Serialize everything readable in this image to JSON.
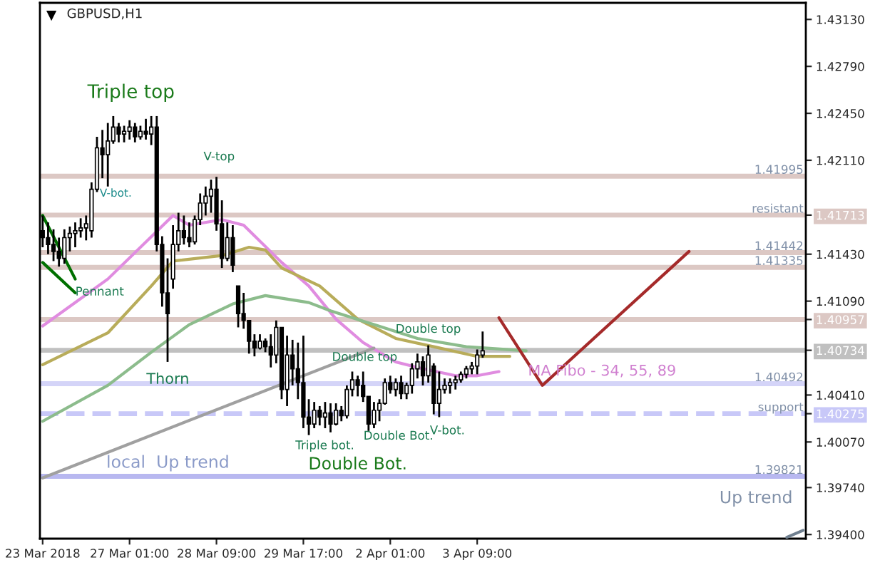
{
  "chart_data": {
    "type": "candlestick",
    "title": "GBPUSD,H1",
    "color": "#000000",
    "categories": [
      "23 Mar 2018",
      null,
      null,
      null,
      null,
      null,
      null,
      null,
      null,
      null,
      null,
      null,
      null,
      null,
      null,
      null,
      "27 Mar 01:00",
      null,
      null,
      null,
      null,
      null,
      null,
      null,
      null,
      null,
      null,
      null,
      null,
      null,
      null,
      null,
      "28 Mar 09:00",
      null,
      null,
      null,
      null,
      null,
      null,
      null,
      null,
      null,
      null,
      null,
      null,
      null,
      null,
      null,
      "29 Mar 17:00",
      null,
      null,
      null,
      null,
      null,
      null,
      null,
      null,
      null,
      null,
      null,
      null,
      null,
      null,
      null,
      "2 Apr 01:00",
      null,
      null,
      null,
      null,
      null,
      null,
      null,
      null,
      null,
      null,
      null,
      null,
      null,
      null,
      null,
      "3 Apr 09:00",
      null,
      null,
      null,
      null,
      null,
      null,
      null,
      null,
      null,
      null,
      null,
      null,
      null,
      null,
      null,
      null,
      null,
      null,
      null,
      null,
      null,
      null,
      null,
      null,
      null,
      null,
      null,
      null,
      null,
      null,
      null,
      null,
      null,
      null,
      null,
      null,
      null,
      null,
      null,
      null,
      null,
      null,
      null,
      null,
      null,
      null,
      null,
      null,
      null,
      null,
      null,
      null,
      null,
      null,
      null,
      null,
      null,
      null,
      null,
      null
    ],
    "ohlc": [
      [
        1.416,
        1.4171,
        1.4148,
        1.4155
      ],
      [
        1.4155,
        1.4166,
        1.4143,
        1.415
      ],
      [
        1.415,
        1.4161,
        1.4138,
        1.4145
      ],
      [
        1.4145,
        1.4155,
        1.4134,
        1.414
      ],
      [
        1.414,
        1.4161,
        1.4136,
        1.4155
      ],
      [
        1.4155,
        1.4163,
        1.4145,
        1.4158
      ],
      [
        1.4158,
        1.4166,
        1.4148,
        1.416
      ],
      [
        1.416,
        1.4169,
        1.4155,
        1.4162
      ],
      [
        1.4162,
        1.4171,
        1.4153,
        1.4165
      ],
      [
        1.416,
        1.4195,
        1.4155,
        1.419
      ],
      [
        1.419,
        1.4228,
        1.4188,
        1.422
      ],
      [
        1.422,
        1.4233,
        1.4198,
        1.4215
      ],
      [
        1.4215,
        1.4238,
        1.4192,
        1.4225
      ],
      [
        1.4225,
        1.4243,
        1.4223,
        1.4235
      ],
      [
        1.4235,
        1.4238,
        1.4224,
        1.423
      ],
      [
        1.423,
        1.4236,
        1.4224,
        1.4232
      ],
      [
        1.4232,
        1.424,
        1.4226,
        1.4235
      ],
      [
        1.4235,
        1.4238,
        1.4224,
        1.4228
      ],
      [
        1.4228,
        1.4236,
        1.4226,
        1.4232
      ],
      [
        1.4232,
        1.4241,
        1.4226,
        1.423
      ],
      [
        1.423,
        1.4243,
        1.4222,
        1.4235
      ],
      [
        1.4235,
        1.4243,
        1.4145,
        1.415
      ],
      [
        1.415,
        1.4156,
        1.4105,
        1.4115
      ],
      [
        1.4115,
        1.414,
        1.4065,
        1.41
      ],
      [
        1.4125,
        1.4164,
        1.4118,
        1.415
      ],
      [
        1.415,
        1.4173,
        1.4145,
        1.416
      ],
      [
        1.416,
        1.4171,
        1.415,
        1.4155
      ],
      [
        1.4155,
        1.4166,
        1.4148,
        1.4152
      ],
      [
        1.4152,
        1.4171,
        1.415,
        1.4168
      ],
      [
        1.4168,
        1.4187,
        1.4164,
        1.418
      ],
      [
        1.418,
        1.4192,
        1.4171,
        1.4185
      ],
      [
        1.4185,
        1.4197,
        1.4173,
        1.419
      ],
      [
        1.419,
        1.4199,
        1.416,
        1.4165
      ],
      [
        1.4165,
        1.4182,
        1.4133,
        1.414
      ],
      [
        1.414,
        1.4166,
        1.4138,
        1.4155
      ],
      [
        1.4155,
        1.4164,
        1.413,
        1.4135
      ],
      [
        1.412,
        1.412,
        1.409,
        1.41
      ],
      [
        1.41,
        1.4115,
        1.4089,
        1.4095
      ],
      [
        1.4095,
        1.4095,
        1.4071,
        1.408
      ],
      [
        1.408,
        1.4085,
        1.4069,
        1.4075
      ],
      [
        1.4075,
        1.4085,
        1.4074,
        1.408
      ],
      [
        1.408,
        1.4082,
        1.4072,
        1.4076
      ],
      [
        1.4076,
        1.4085,
        1.4061,
        1.407
      ],
      [
        1.407,
        1.4095,
        1.4064,
        1.409
      ],
      [
        1.409,
        1.409,
        1.4038,
        1.4045
      ],
      [
        1.4045,
        1.4084,
        1.4033,
        1.407
      ],
      [
        1.407,
        1.4081,
        1.4048,
        1.406
      ],
      [
        1.406,
        1.4079,
        1.4038,
        1.405
      ],
      [
        1.405,
        1.4084,
        1.4017,
        1.4025
      ],
      [
        1.4025,
        1.4038,
        1.4012,
        1.402
      ],
      [
        1.402,
        1.4036,
        1.4017,
        1.403
      ],
      [
        1.403,
        1.4033,
        1.4019,
        1.4025
      ],
      [
        1.4025,
        1.4036,
        1.4017,
        1.4028
      ],
      [
        1.4028,
        1.4035,
        1.4014,
        1.402
      ],
      [
        1.402,
        1.4035,
        1.4019,
        1.403
      ],
      [
        1.403,
        1.4033,
        1.4022,
        1.4026
      ],
      [
        1.4026,
        1.4048,
        1.4024,
        1.4045
      ],
      [
        1.4045,
        1.4058,
        1.404,
        1.4052
      ],
      [
        1.4052,
        1.4055,
        1.404,
        1.4048
      ],
      [
        1.4048,
        1.4058,
        1.4036,
        1.404
      ],
      [
        1.404,
        1.404,
        1.4015,
        1.402
      ],
      [
        1.402,
        1.4036,
        1.4017,
        1.403
      ],
      [
        1.403,
        1.4038,
        1.4022,
        1.4035
      ],
      [
        1.4035,
        1.4053,
        1.4034,
        1.405
      ],
      [
        1.405,
        1.4055,
        1.4042,
        1.4045
      ],
      [
        1.4045,
        1.4053,
        1.404,
        1.405
      ],
      [
        1.405,
        1.4055,
        1.4038,
        1.4042
      ],
      [
        1.4042,
        1.405,
        1.4038,
        1.4048
      ],
      [
        1.4048,
        1.4064,
        1.4042,
        1.406
      ],
      [
        1.406,
        1.4071,
        1.4053,
        1.4065
      ],
      [
        1.4065,
        1.4069,
        1.4048,
        1.4055
      ],
      [
        1.4055,
        1.4077,
        1.405,
        1.407
      ],
      [
        1.4062,
        1.4064,
        1.4027,
        1.4035
      ],
      [
        1.4035,
        1.4058,
        1.4025,
        1.4045
      ],
      [
        1.4045,
        1.4053,
        1.4042,
        1.4048
      ],
      [
        1.4048,
        1.4053,
        1.4042,
        1.405
      ],
      [
        1.405,
        1.4055,
        1.4045,
        1.4052
      ],
      [
        1.4052,
        1.4058,
        1.405,
        1.4056
      ],
      [
        1.4056,
        1.4062,
        1.4053,
        1.406
      ],
      [
        1.406,
        1.4065,
        1.4056,
        1.4062
      ],
      [
        1.4062,
        1.4074,
        1.4056,
        1.407
      ],
      [
        1.407,
        1.4087,
        1.4068,
        1.4073
      ],
      null,
      null,
      null,
      null,
      null,
      null,
      null,
      null,
      null,
      null,
      null,
      null,
      null,
      null,
      null,
      null,
      null,
      null,
      null,
      null,
      null,
      null,
      null,
      null,
      null,
      null,
      null,
      null,
      null,
      null,
      null,
      null,
      null,
      null,
      null,
      null,
      null,
      null,
      null,
      null,
      null,
      null,
      null,
      null,
      null,
      null,
      null,
      null,
      null,
      null,
      null,
      null,
      null,
      null,
      null,
      null,
      null,
      null,
      null
    ],
    "series": [
      {
        "type": "line",
        "color": "#e08ce0",
        "values": [
          1.4091,
          null,
          null,
          null,
          null,
          null,
          null,
          null,
          null,
          null,
          null,
          null,
          1.4125,
          null,
          null,
          null,
          null,
          null,
          null,
          null,
          null,
          null,
          null,
          null,
          1.4171,
          null,
          null,
          1.4164,
          null,
          null,
          null,
          null,
          null,
          1.4168,
          null,
          null,
          null,
          1.4164,
          null,
          null,
          null,
          null,
          null,
          null,
          1.4137,
          null,
          null,
          null,
          null,
          1.412,
          null,
          null,
          null,
          null,
          1.4096,
          null,
          null,
          null,
          null,
          1.4079,
          null,
          null,
          null,
          null,
          null,
          1.4065,
          null,
          null,
          null,
          1.4061,
          null,
          null,
          null,
          null,
          null,
          null,
          1.4055,
          null,
          null,
          null,
          1.4055,
          null,
          null,
          null,
          1.4058,
          null,
          null,
          null,
          null,
          null,
          null,
          null,
          null,
          null,
          null,
          null,
          null,
          null,
          null,
          null,
          null,
          null,
          null,
          null,
          null,
          null,
          null,
          null,
          null,
          null,
          null,
          null,
          null,
          null,
          null,
          null,
          null,
          null,
          null,
          null,
          null,
          null,
          null,
          null,
          null,
          null,
          null,
          null,
          null,
          null,
          null,
          null,
          null,
          null,
          null,
          null,
          null,
          null,
          null,
          null,
          null
        ]
      },
      {
        "type": "line",
        "color": "#b8ac5a",
        "values": [
          1.4063,
          null,
          null,
          null,
          null,
          null,
          null,
          null,
          null,
          null,
          null,
          null,
          1.4086,
          null,
          null,
          null,
          null,
          null,
          null,
          null,
          1.412,
          null,
          null,
          null,
          1.4138,
          null,
          null,
          null,
          null,
          null,
          null,
          null,
          null,
          1.4142,
          null,
          null,
          null,
          null,
          1.4148,
          null,
          null,
          1.4146,
          null,
          null,
          1.4133,
          null,
          null,
          null,
          null,
          null,
          null,
          1.412,
          null,
          null,
          null,
          null,
          null,
          null,
          1.4096,
          null,
          null,
          null,
          null,
          null,
          null,
          1.4082,
          null,
          null,
          null,
          null,
          null,
          null,
          1.4076,
          null,
          null,
          null,
          null,
          null,
          null,
          null,
          1.4069,
          null,
          null,
          null,
          null,
          null,
          1.4069,
          null,
          null,
          null,
          null,
          null,
          null,
          null,
          null,
          null,
          null,
          null,
          null,
          null,
          null,
          null,
          null,
          null,
          null,
          null,
          null,
          null,
          null,
          null,
          null,
          null,
          null,
          null,
          null,
          null,
          null,
          null,
          null,
          null,
          null,
          null,
          null,
          null,
          null,
          null,
          null,
          null,
          null,
          null,
          null,
          null,
          null,
          null,
          null,
          null,
          null,
          null,
          null,
          null,
          null
        ]
      },
      {
        "type": "line",
        "color": "#8cbc8c",
        "values": [
          1.4022,
          null,
          null,
          null,
          null,
          null,
          null,
          null,
          null,
          null,
          null,
          null,
          1.4048,
          null,
          null,
          null,
          null,
          null,
          null,
          null,
          1.4072,
          null,
          null,
          null,
          null,
          null,
          null,
          1.4092,
          null,
          null,
          null,
          null,
          null,
          null,
          null,
          1.4107,
          null,
          null,
          null,
          null,
          null,
          1.4113,
          null,
          null,
          null,
          null,
          null,
          null,
          null,
          1.4108,
          null,
          null,
          null,
          1.4102,
          null,
          null,
          null,
          null,
          null,
          null,
          null,
          1.4092,
          null,
          null,
          null,
          null,
          null,
          null,
          null,
          1.4082,
          null,
          null,
          null,
          null,
          null,
          null,
          null,
          null,
          1.4076,
          null,
          null,
          null,
          null,
          null,
          null,
          null,
          null,
          null,
          null,
          1.4073,
          null,
          null,
          null,
          null,
          null,
          null,
          null,
          null,
          null,
          null,
          null,
          null,
          null,
          null,
          null,
          null,
          null,
          null,
          null,
          null,
          null,
          null,
          null,
          null,
          null,
          null,
          null,
          null,
          null,
          null,
          null,
          null,
          null,
          null,
          null,
          null,
          null,
          null,
          null,
          null,
          null,
          null,
          null,
          null,
          null,
          null,
          null,
          null,
          null,
          null,
          null
        ]
      },
      {
        "type": "line",
        "color": "#a0a0a0",
        "values": [
          1.3981,
          null,
          null,
          null,
          null,
          null,
          null,
          null,
          null,
          null,
          null,
          null,
          null,
          null,
          null,
          null,
          null,
          null,
          null,
          null,
          null,
          null,
          null,
          null,
          null,
          null,
          null,
          null,
          null,
          null,
          null,
          null,
          null,
          null,
          null,
          null,
          null,
          null,
          null,
          null,
          null,
          null,
          null,
          null,
          null,
          null,
          null,
          null,
          null,
          null,
          null,
          null,
          null,
          null,
          null,
          null,
          null,
          null,
          null,
          null,
          null,
          1.4075,
          null,
          null,
          null,
          null,
          null,
          null,
          null,
          null,
          null,
          null,
          null,
          null,
          null,
          null,
          null,
          null,
          null,
          null,
          null,
          null,
          null,
          null,
          null,
          null,
          null,
          null,
          null,
          null,
          null,
          null,
          null,
          null,
          null,
          null,
          null,
          null,
          null,
          null,
          null,
          null,
          null,
          null,
          null,
          null,
          null,
          null,
          null,
          null,
          null,
          null,
          null,
          null,
          null,
          null,
          null,
          null,
          null,
          null,
          null,
          null,
          null,
          null,
          null,
          null,
          null,
          null,
          null,
          null,
          null,
          null,
          null,
          null,
          null,
          null,
          null,
          null,
          null,
          null,
          null
        ]
      },
      {
        "type": "line",
        "color": "#708090",
        "values": [
          null,
          null,
          null,
          null,
          null,
          null,
          null,
          null,
          null,
          null,
          null,
          null,
          null,
          null,
          null,
          null,
          null,
          null,
          null,
          null,
          null,
          null,
          null,
          null,
          null,
          null,
          null,
          null,
          null,
          null,
          null,
          null,
          null,
          null,
          null,
          null,
          null,
          null,
          null,
          null,
          null,
          null,
          null,
          null,
          null,
          null,
          null,
          null,
          null,
          null,
          null,
          null,
          null,
          null,
          null,
          null,
          null,
          null,
          null,
          null,
          null,
          null,
          null,
          null,
          null,
          null,
          null,
          null,
          null,
          null,
          null,
          null,
          null,
          null,
          null,
          null,
          null,
          null,
          null,
          null,
          null,
          null,
          null,
          null,
          null,
          null,
          null,
          null,
          null,
          null,
          null,
          null,
          null,
          null,
          null,
          null,
          null,
          null,
          null,
          null,
          null,
          null,
          null,
          null,
          null,
          null,
          null,
          null,
          null,
          null,
          null,
          null,
          null,
          null,
          null,
          null,
          null,
          null,
          null,
          null,
          null,
          null,
          null,
          null,
          null,
          null,
          null,
          null,
          null,
          null,
          null,
          null,
          null,
          null,
          null,
          null,
          null,
          1.3938,
          null,
          null,
          1.3943
        ]
      },
      {
        "type": "line",
        "color": "#007000",
        "values": [
          1.4171,
          null,
          null,
          null,
          null,
          null,
          1.4125,
          null,
          null,
          null,
          null,
          null,
          null,
          null,
          null,
          null,
          null,
          null,
          null,
          null,
          null,
          null,
          null,
          null,
          null,
          null,
          null,
          null,
          null,
          null,
          null,
          null,
          null,
          null,
          null,
          null,
          null,
          null,
          null,
          null,
          null,
          null,
          null,
          null,
          null,
          null,
          null,
          null,
          null,
          null,
          null,
          null,
          null,
          null,
          null,
          null,
          null,
          null,
          null,
          null,
          null,
          null,
          null,
          null,
          null,
          null,
          null,
          null,
          null,
          null,
          null,
          null,
          null,
          null,
          null,
          null,
          null,
          null,
          null,
          null,
          null,
          null,
          null,
          null,
          null,
          null,
          null,
          null,
          null,
          null,
          null,
          null,
          null,
          null,
          null,
          null,
          null,
          null,
          null,
          null,
          null,
          null,
          null,
          null,
          null,
          null,
          null,
          null,
          null,
          null,
          null,
          null,
          null,
          null,
          null,
          null,
          null,
          null,
          null,
          null,
          null,
          null,
          null,
          null,
          null,
          null,
          null,
          null,
          null,
          null,
          null,
          null,
          null,
          null,
          null,
          null,
          null,
          null,
          null,
          null,
          null
        ]
      },
      {
        "type": "line",
        "color": "#007000",
        "values": [
          1.4137,
          null,
          null,
          null,
          null,
          null,
          1.4115,
          null,
          null,
          null,
          null,
          null,
          null,
          null,
          null,
          null,
          null,
          null,
          null,
          null,
          null,
          null,
          null,
          null,
          null,
          null,
          null,
          null,
          null,
          null,
          null,
          null,
          null,
          null,
          null,
          null,
          null,
          null,
          null,
          null,
          null,
          null,
          null,
          null,
          null,
          null,
          null,
          null,
          null,
          null,
          null,
          null,
          null,
          null,
          null,
          null,
          null,
          null,
          null,
          null,
          null,
          null,
          null,
          null,
          null,
          null,
          null,
          null,
          null,
          null,
          null,
          null,
          null,
          null,
          null,
          null,
          null,
          null,
          null,
          null,
          null,
          null,
          null,
          null,
          null,
          null,
          null,
          null,
          null,
          null,
          null,
          null,
          null,
          null,
          null,
          null,
          null,
          null,
          null,
          null,
          null,
          null,
          null,
          null,
          null,
          null,
          null,
          null,
          null,
          null,
          null,
          null,
          null,
          null,
          null,
          null,
          null,
          null,
          null,
          null,
          null,
          null,
          null,
          null,
          null,
          null,
          null,
          null,
          null,
          null,
          null,
          null,
          null,
          null,
          null,
          null,
          null,
          null,
          null,
          null,
          null
        ]
      },
      {
        "type": "line",
        "color": "#a52a2a",
        "values": [
          null,
          null,
          null,
          null,
          null,
          null,
          null,
          null,
          null,
          null,
          null,
          null,
          null,
          null,
          null,
          null,
          null,
          null,
          null,
          null,
          null,
          null,
          null,
          null,
          null,
          null,
          null,
          null,
          null,
          null,
          null,
          null,
          null,
          null,
          null,
          null,
          null,
          null,
          null,
          null,
          null,
          null,
          null,
          null,
          null,
          null,
          null,
          null,
          null,
          null,
          null,
          null,
          null,
          null,
          null,
          null,
          null,
          null,
          null,
          null,
          null,
          null,
          null,
          null,
          null,
          null,
          null,
          null,
          null,
          null,
          null,
          null,
          null,
          null,
          null,
          null,
          null,
          null,
          null,
          null,
          null,
          null,
          null,
          null,
          1.4097,
          null,
          null,
          null,
          null,
          null,
          null,
          null,
          1.4048,
          null,
          null,
          null,
          null,
          null,
          null,
          null,
          null,
          null,
          null,
          null,
          null,
          null,
          null,
          null,
          null,
          null,
          null,
          null,
          null,
          null,
          null,
          null,
          null,
          null,
          null,
          1.4145,
          null,
          null,
          null,
          null,
          null,
          null,
          null,
          null,
          null,
          null,
          null,
          null,
          null,
          null,
          null,
          null,
          null,
          null,
          null,
          null,
          null
        ]
      }
    ],
    "ref_lines": [
      {
        "axis": "y",
        "value": 1.41995,
        "label": "1.41995",
        "color": "#dcc8c4"
      },
      {
        "axis": "y",
        "value": 1.41713,
        "label": "resistant",
        "color": "#dcc8c4"
      },
      {
        "axis": "y",
        "value": 1.41442,
        "label": "1.41442",
        "color": "#dcc8c4"
      },
      {
        "axis": "y",
        "value": 1.41335,
        "label": "1.41335",
        "color": "#dcc8c4"
      },
      {
        "axis": "y",
        "value": 1.40957,
        "label": null,
        "color": "#dcc8c4"
      },
      {
        "axis": "y",
        "value": 1.40734,
        "label": null,
        "color": "#c0c0c0"
      },
      {
        "axis": "y",
        "value": 1.40492,
        "label": "1.40492",
        "color": "#d4d4f8"
      },
      {
        "axis": "y",
        "value": 1.40275,
        "label": "support",
        "color": "#c8c8f8",
        "line_style": "dashed"
      },
      {
        "axis": "y",
        "value": 1.39821,
        "label": "1.39821",
        "color": "#b8b8f0"
      }
    ],
    "annotations": [
      "Triple top",
      "V-bot.",
      {
        "text": "V-top",
        "y": 1.4199
      },
      "Pennant",
      {
        "text": "Thorn",
        "y": 1.4065
      },
      "Double top",
      {
        "text": "Double top",
        "y": 1.4077
      },
      "Triple bot.",
      "Double Bot.",
      "Double Bot.",
      {
        "text": "V-bot.",
        "y": 1.4025
      },
      "local  Up trend",
      "Up trend",
      "MA Fibo - 34, 55, 89"
    ],
    "ylim": [
      1.3937,
      1.4325
    ],
    "yticks": [
      {
        "value": 1.4313,
        "label": "1.43130"
      },
      {
        "value": 1.4279,
        "label": "1.42790"
      },
      {
        "value": 1.4245,
        "label": "1.42450"
      },
      {
        "value": 1.4211,
        "label": "1.42110"
      },
      {
        "value": 1.41713,
        "label": "1.41713"
      },
      {
        "value": 1.4143,
        "label": "1.41430"
      },
      {
        "value": 1.4109,
        "label": "1.41090"
      },
      {
        "value": 1.40957,
        "label": "1.40957"
      },
      {
        "value": 1.40734,
        "label": "1.40734"
      },
      {
        "value": 1.4041,
        "label": "1.40410"
      },
      {
        "value": 1.40275,
        "label": "1.40275"
      },
      {
        "value": 1.4007,
        "label": "1.40070"
      },
      {
        "value": 1.3974,
        "label": "1.39740"
      },
      {
        "value": 1.394,
        "label": "1.39400"
      }
    ],
    "grid": false
  }
}
